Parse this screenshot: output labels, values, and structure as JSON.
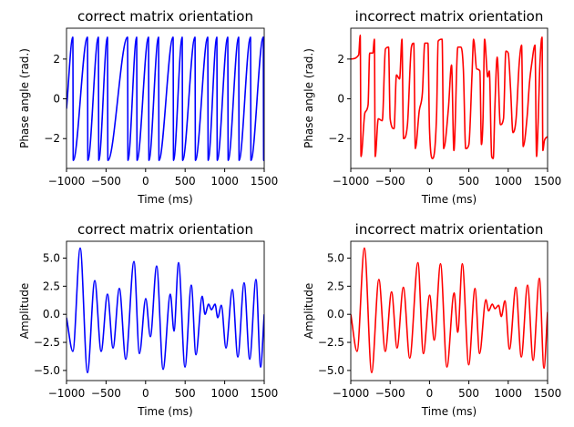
{
  "chart_data": [
    {
      "type": "line",
      "title": "correct matrix orientation",
      "xlabel": "Time (ms)",
      "ylabel": "Phase angle (rad.)",
      "color": "#0000ff",
      "xlim": [
        -1000,
        1500
      ],
      "ylim": [
        -3.5,
        3.55
      ],
      "xticks": [
        {
          "value": -1000,
          "label": "−1000"
        },
        {
          "value": -500,
          "label": "−500"
        },
        0,
        500,
        1000,
        1500
      ],
      "yticks": [
        {
          "value": -2,
          "label": "−2"
        },
        0,
        2
      ],
      "x": [
        -1000,
        -920,
        -915,
        -735,
        -730,
        -597,
        -592,
        -482,
        -477,
        -228,
        -223,
        -113,
        -108,
        37,
        42,
        164,
        169,
        348,
        353,
        463,
        468,
        625,
        630,
        786,
        791,
        901,
        906,
        1039,
        1044,
        1177,
        1182,
        1327,
        1332,
        1488,
        1493,
        1500
      ],
      "values": [
        -0.5,
        3.1,
        -3.1,
        3.1,
        -3.1,
        3.1,
        -3.1,
        3.1,
        -3.1,
        3.1,
        -3.1,
        3.1,
        -3.1,
        3.1,
        -3.1,
        3.1,
        -3.1,
        3.1,
        -3.1,
        3.1,
        -3.1,
        3.1,
        -3.1,
        3.1,
        -3.1,
        3.1,
        -3.1,
        3.1,
        -3.1,
        3.1,
        -3.1,
        3.1,
        -3.1,
        3.1,
        -3.1,
        -1.6
      ]
    },
    {
      "type": "line",
      "title": "incorrect matrix orientation",
      "xlabel": "Time (ms)",
      "ylabel": "Phase angle (rad.)",
      "color": "#ff0000",
      "xlim": [
        -1000,
        1500
      ],
      "ylim": [
        -3.5,
        3.55
      ],
      "xticks": [
        {
          "value": -1000,
          "label": "−1000"
        },
        {
          "value": -500,
          "label": "−500"
        },
        0,
        500,
        1000,
        1500
      ],
      "yticks": [
        {
          "value": -2,
          "label": "−2"
        },
        0,
        2
      ],
      "x": [
        -1000,
        -900,
        -880,
        -870,
        -820,
        -780,
        -760,
        -720,
        -700,
        -690,
        -650,
        -600,
        -560,
        -520,
        -500,
        -450,
        -420,
        -380,
        -350,
        -330,
        -280,
        -230,
        -200,
        -180,
        -130,
        -90,
        -60,
        -20,
        0,
        40,
        90,
        110,
        160,
        180,
        240,
        280,
        310,
        360,
        400,
        430,
        460,
        500,
        540,
        560,
        600,
        640,
        660,
        680,
        700,
        740,
        760,
        790,
        810,
        830,
        860,
        900,
        940,
        970,
        1000,
        1030,
        1060,
        1100,
        1140,
        1170,
        1190,
        1240,
        1270,
        1300,
        1340,
        1360,
        1380,
        1400,
        1430,
        1440,
        1460,
        1500
      ],
      "values": [
        2.0,
        2.2,
        3.2,
        -2.9,
        -0.7,
        -0.3,
        2.3,
        2.3,
        3.0,
        -2.9,
        -1.0,
        -1.1,
        2.5,
        2.6,
        -1.0,
        -1.5,
        1.2,
        1.0,
        3.0,
        -2.0,
        -1.3,
        2.6,
        2.8,
        -2.5,
        -0.6,
        0.3,
        2.8,
        2.8,
        -1.5,
        -3.0,
        -0.8,
        2.9,
        3.0,
        -2.5,
        -0.5,
        1.7,
        -2.6,
        2.6,
        2.6,
        1.5,
        -2.5,
        -2.3,
        1.2,
        3.0,
        1.5,
        1.4,
        -2.3,
        -1.0,
        3.0,
        1.1,
        1.4,
        -2.9,
        -3.0,
        -0.5,
        2.1,
        -1.3,
        -1.0,
        2.4,
        2.3,
        0.5,
        -1.7,
        -1.0,
        1.8,
        2.7,
        -2.4,
        -0.9,
        0.8,
        1.8,
        2.7,
        -2.9,
        -1.2,
        1.5,
        3.1,
        -2.6,
        -2.1,
        -1.9
      ]
    },
    {
      "type": "line",
      "title": "correct matrix orientation",
      "xlabel": "Time (ms)",
      "ylabel": "Amplitude",
      "color": "#0000ff",
      "xlim": [
        -1000,
        1500
      ],
      "ylim": [
        -5.9,
        6.5
      ],
      "xticks": [
        {
          "value": -1000,
          "label": "−1000"
        },
        {
          "value": -500,
          "label": "−500"
        },
        0,
        500,
        1000,
        1500
      ],
      "yticks": [
        {
          "value": -5,
          "label": "−5.0"
        },
        {
          "value": -2.5,
          "label": "−2.5"
        },
        {
          "value": 0,
          "label": "0.0"
        },
        2.5,
        {
          "value": 5,
          "label": "5.0"
        }
      ],
      "x": [
        -1000,
        -920,
        -827,
        -735,
        -643,
        -562,
        -482,
        -412,
        -332,
        -251,
        -147,
        -78,
        2,
        60,
        140,
        221,
        313,
        359,
        417,
        498,
        578,
        636,
        716,
        751,
        797,
        832,
        878,
        912,
        958,
        1016,
        1097,
        1166,
        1246,
        1316,
        1396,
        1454,
        1500
      ],
      "values": [
        -0.3,
        -3.3,
        5.9,
        -5.2,
        3.0,
        -3.3,
        1.8,
        -3.0,
        2.3,
        -4.0,
        4.7,
        -3.5,
        1.4,
        -2.0,
        4.3,
        -4.9,
        1.8,
        -1.5,
        4.6,
        -4.7,
        2.6,
        -3.6,
        1.6,
        0.0,
        0.9,
        0.4,
        0.9,
        -0.3,
        0.8,
        -3.0,
        2.2,
        -3.8,
        2.8,
        -4.0,
        3.1,
        -4.7,
        0.0
      ]
    },
    {
      "type": "line",
      "title": "incorrect matrix orientation",
      "xlabel": "Time (ms)",
      "ylabel": "Amplitude",
      "color": "#ff0000",
      "xlim": [
        -1000,
        1500
      ],
      "ylim": [
        -5.9,
        6.5
      ],
      "xticks": [
        {
          "value": -1000,
          "label": "−1000"
        },
        {
          "value": -500,
          "label": "−500"
        },
        0,
        500,
        1000,
        1500
      ],
      "yticks": [
        {
          "value": -5,
          "label": "−5.0"
        },
        {
          "value": -2.5,
          "label": "−2.5"
        },
        {
          "value": 0,
          "label": "0.0"
        },
        2.5,
        {
          "value": 5,
          "label": "5.0"
        }
      ],
      "x": [
        -1000,
        -920,
        -827,
        -735,
        -643,
        -562,
        -482,
        -412,
        -332,
        -251,
        -147,
        -78,
        2,
        60,
        140,
        221,
        313,
        359,
        417,
        498,
        578,
        636,
        716,
        751,
        797,
        832,
        878,
        912,
        958,
        1016,
        1097,
        1166,
        1246,
        1316,
        1396,
        1454,
        1500
      ],
      "values": [
        0.0,
        -3.3,
        5.9,
        -5.2,
        3.1,
        -3.3,
        2.0,
        -3.0,
        2.4,
        -3.9,
        4.6,
        -3.5,
        1.7,
        -2.3,
        4.5,
        -4.7,
        1.9,
        -1.6,
        4.5,
        -4.5,
        2.3,
        -3.5,
        1.3,
        0.3,
        0.9,
        0.5,
        0.8,
        -0.2,
        1.2,
        -3.1,
        2.4,
        -3.8,
        2.6,
        -4.1,
        3.2,
        -4.8,
        0.2
      ]
    }
  ]
}
